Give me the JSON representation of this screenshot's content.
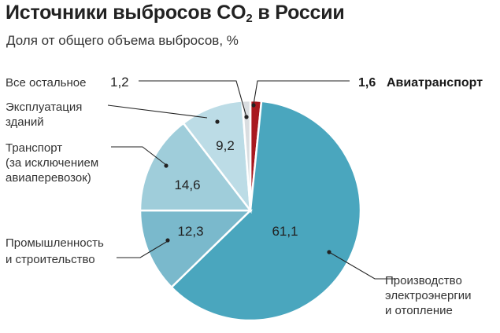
{
  "chart_data": {
    "type": "pie",
    "title_main": "Источники выбросов CO",
    "title_sub": "2",
    "title_tail": " в России",
    "subtitle": "Доля от общего объема выбросов, %",
    "slices": [
      {
        "name": "Авиатранспорт",
        "value": 1.6,
        "label": "1,6",
        "color": "#a8191f"
      },
      {
        "name": "Производство электроэнергии и отопление",
        "lines": [
          "Производство",
          "электроэнергии",
          "и отопление"
        ],
        "value": 61.1,
        "label": "61,1",
        "color": "#4aa6be"
      },
      {
        "name": "Промышленность и строительство",
        "lines": [
          "Промышленность",
          "и строительство"
        ],
        "value": 12.3,
        "label": "12,3",
        "color": "#7ab9cc"
      },
      {
        "name": "Транспорт (за исключением авиаперевозок)",
        "lines": [
          "Транспорт",
          "(за исключением",
          "авиаперевозок)"
        ],
        "value": 14.6,
        "label": "14,6",
        "color": "#9fcdda"
      },
      {
        "name": "Эксплуатация зданий",
        "lines": [
          "Эксплуатация",
          "зданий"
        ],
        "value": 9.2,
        "label": "9,2",
        "color": "#bcdce6"
      },
      {
        "name": "Все остальное",
        "value": 1.2,
        "label": "1,2",
        "color": "#d9dde0"
      }
    ]
  }
}
